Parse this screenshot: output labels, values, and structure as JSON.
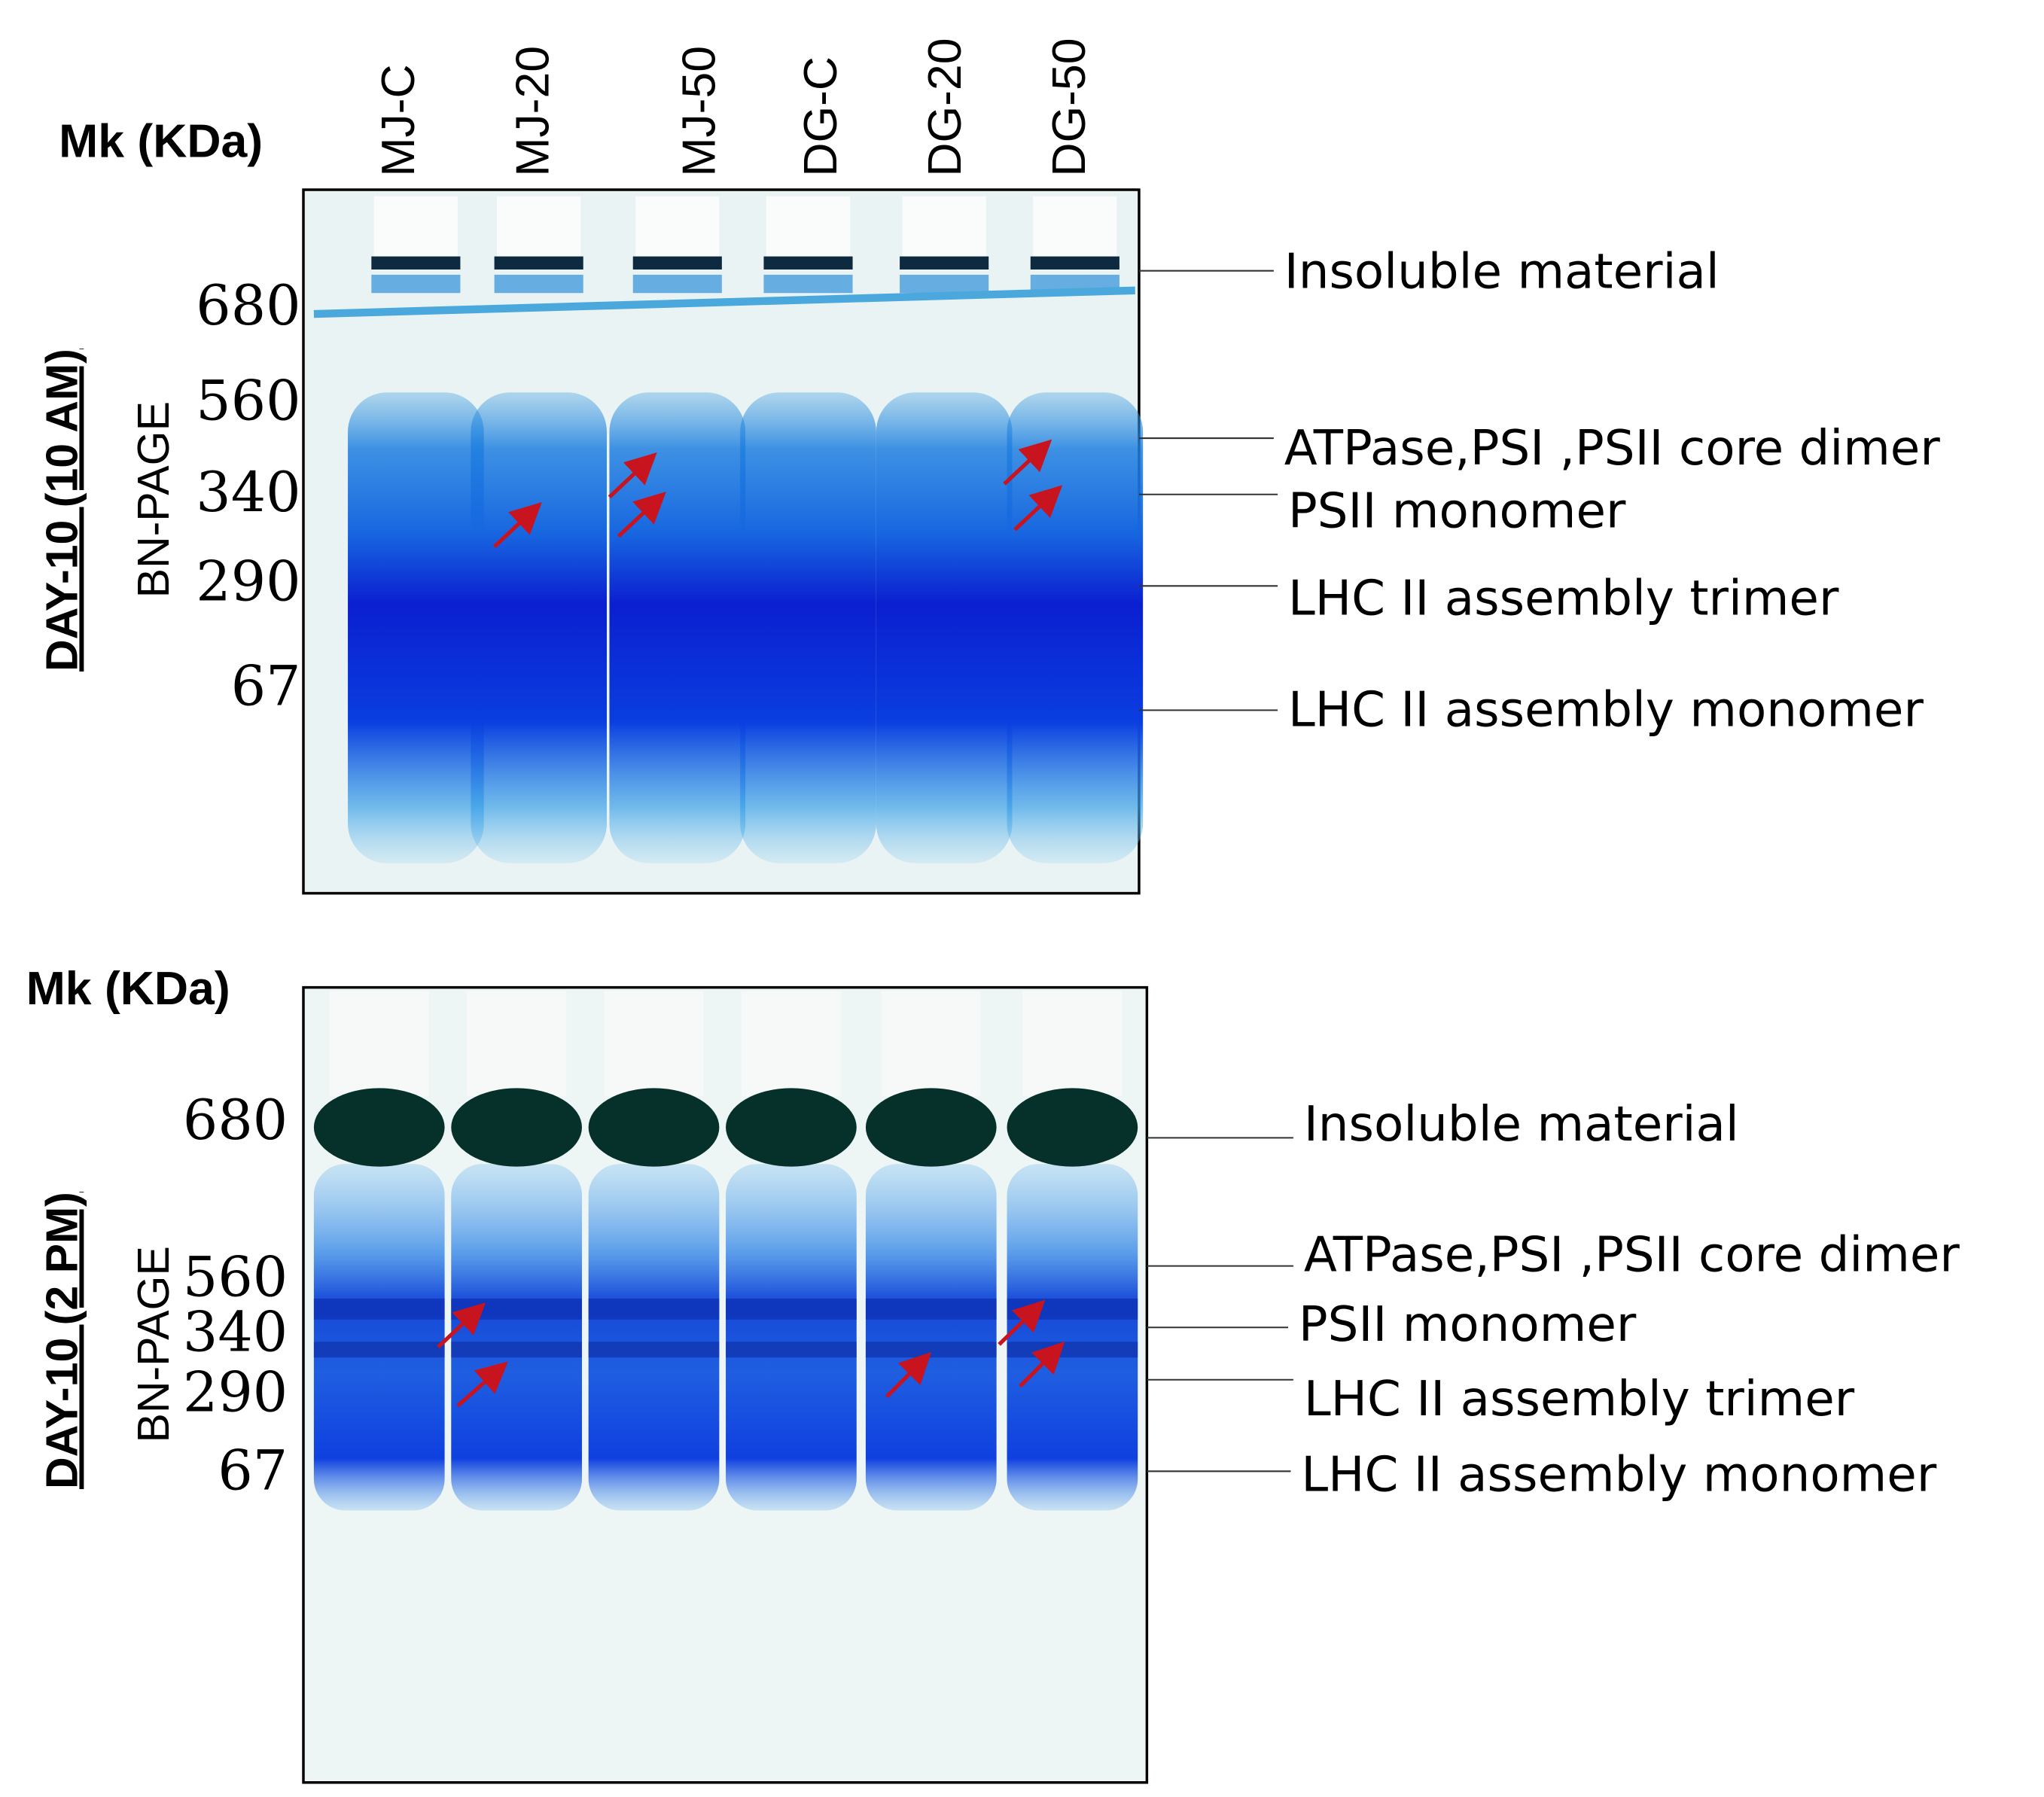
{
  "panels": [
    {
      "marker_header": "Mk (KDa)",
      "side_label": "DAY-10 (10 AM)",
      "method": "BN-PAGE",
      "lanes": [
        "MJ-C",
        "MJ-20",
        "MJ-50",
        "DG-C",
        "DG-20",
        "DG-50"
      ],
      "markers": [
        680,
        560,
        340,
        290,
        67
      ],
      "bands": [
        "Insoluble material",
        "ATPase,PSI ,PSII core dimer",
        "PSII monomer",
        "LHC II assembly trimer",
        "LHC II assembly monomer"
      ]
    },
    {
      "marker_header": "Mk (KDa)",
      "side_label": "DAY-10 (2 PM)",
      "method": "BN-PAGE",
      "markers": [
        680,
        560,
        340,
        290,
        67
      ],
      "bands": [
        "Insoluble material",
        "ATPase,PSI ,PSII core dimer",
        "PSII monomer",
        "LHC II assembly trimer",
        "LHC II assembly monomer"
      ]
    }
  ]
}
